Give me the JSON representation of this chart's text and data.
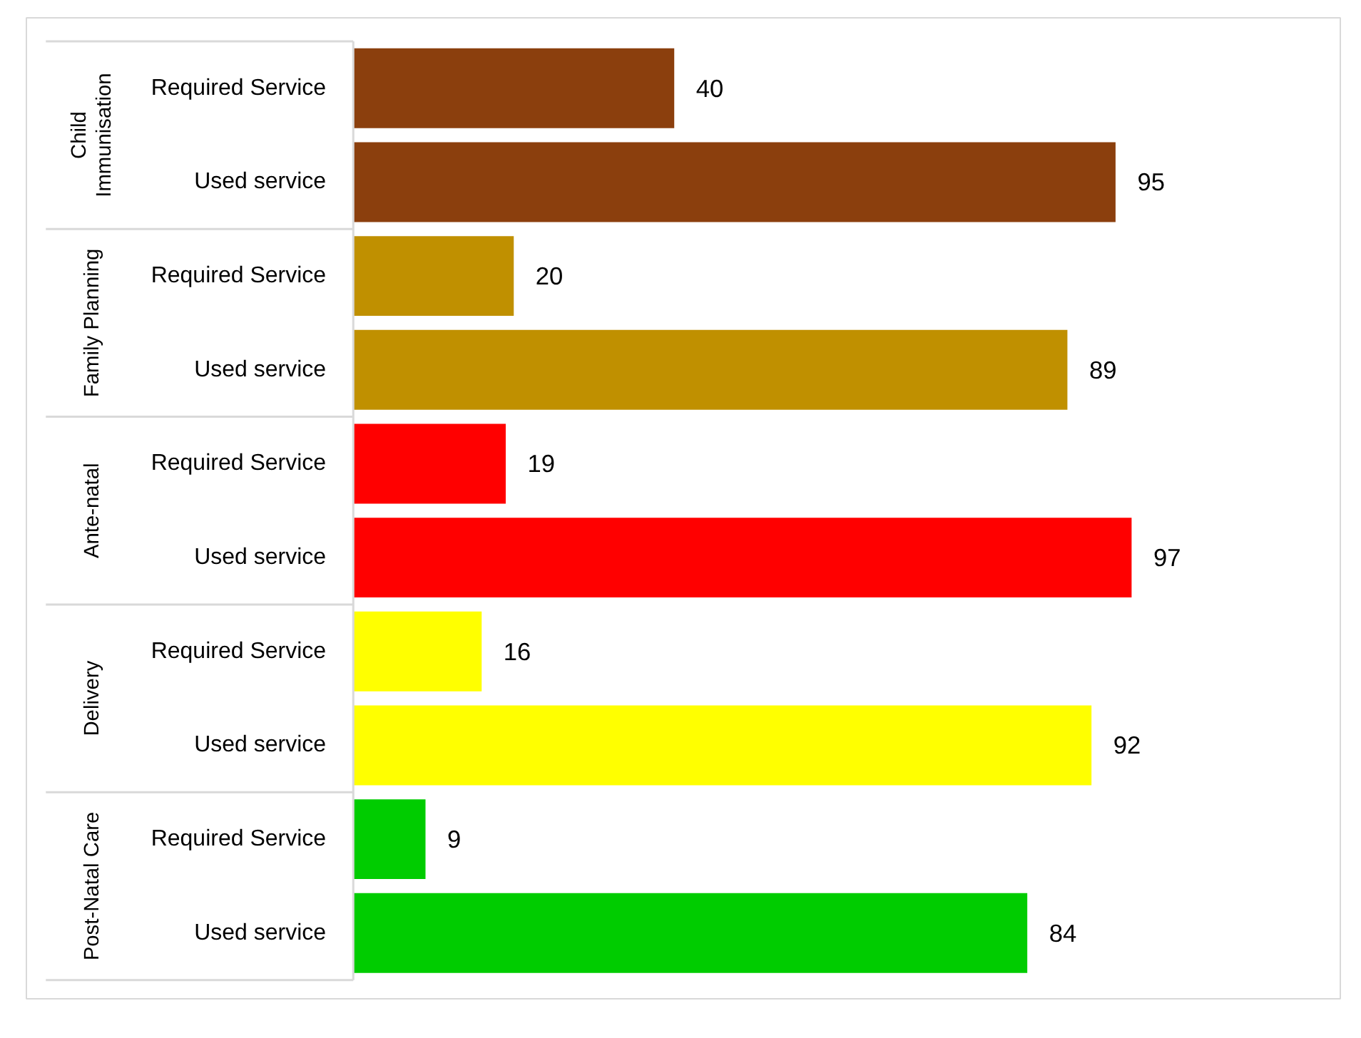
{
  "chart_data": {
    "type": "bar",
    "orientation": "horizontal",
    "data_labels": true,
    "categories": [
      "Required Service",
      "Used service",
      "Required Service",
      "Used service",
      "Required Service",
      "Used service",
      "Required Service",
      "Used service",
      "Required Service",
      "Used service"
    ],
    "annotations": [
      "Child Immunisation",
      "Family Planning",
      "Ante-natal",
      "Delivery",
      "Post-Natal Care"
    ],
    "series": [
      {
        "color": "#8b3f0d",
        "values": [
          40,
          95,
          null,
          null,
          null,
          null,
          null,
          null,
          null,
          null
        ]
      },
      {
        "color": "#c09000",
        "values": [
          null,
          null,
          20,
          89,
          null,
          null,
          null,
          null,
          null,
          null
        ]
      },
      {
        "color": "#ff0000",
        "values": [
          null,
          null,
          null,
          null,
          19,
          97,
          null,
          null,
          null,
          null
        ]
      },
      {
        "color": "#ffff00",
        "values": [
          null,
          null,
          null,
          null,
          null,
          null,
          16,
          92,
          null,
          null
        ]
      },
      {
        "color": "#00cc00",
        "values": [
          null,
          null,
          null,
          null,
          null,
          null,
          null,
          null,
          9,
          84
        ]
      }
    ]
  }
}
